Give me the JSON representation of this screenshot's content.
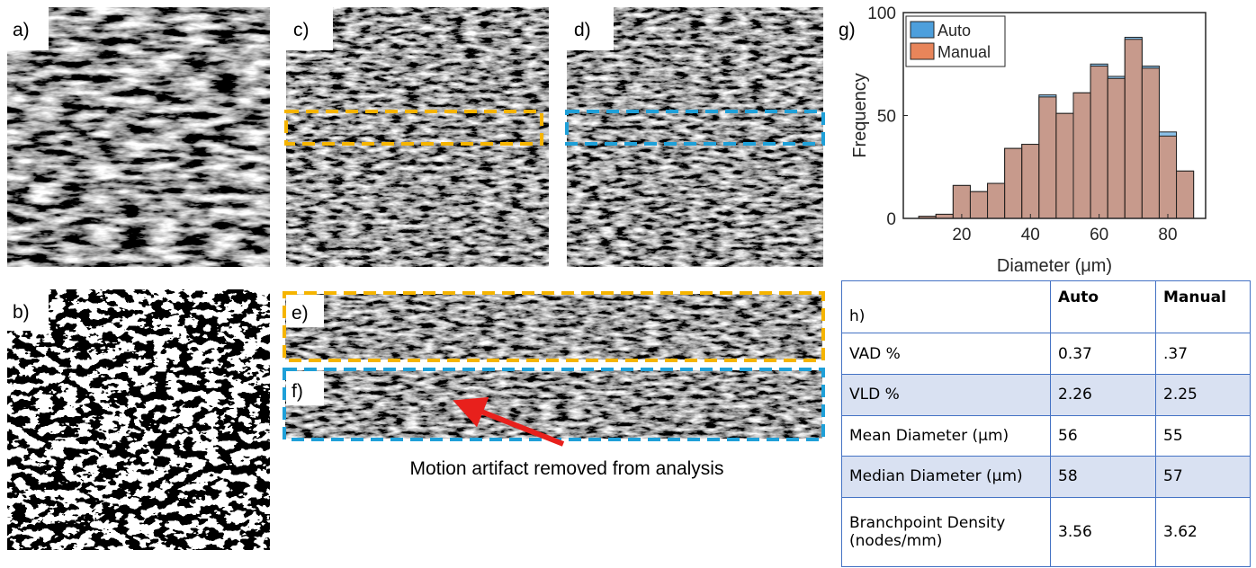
{
  "panels": [
    "a)",
    "b)",
    "c)",
    "d)",
    "e)",
    "f)"
  ],
  "annotation": "Motion artifact removed from analysis",
  "chart_data": {
    "type": "histogram",
    "label": "g)",
    "x_label": "Diameter (μm)",
    "y_label": "Frequency",
    "bins": [
      7.5,
      12.5,
      17.5,
      22.5,
      27.5,
      32.5,
      37.5,
      42.5,
      47.5,
      52.5,
      57.5,
      62.5,
      67.5,
      72.5,
      77.5,
      82.5,
      87.5
    ],
    "series": [
      {
        "name": "Auto",
        "color": "#4d9fdc",
        "values": [
          1,
          2,
          16,
          13,
          17,
          34,
          36,
          60,
          51,
          61,
          75,
          69,
          88,
          74,
          42,
          23
        ]
      },
      {
        "name": "Manual",
        "color": "#e8855a",
        "values": [
          1,
          2,
          16,
          13,
          17,
          34,
          36,
          59,
          51,
          61,
          74,
          68,
          87,
          73,
          40,
          23
        ]
      }
    ],
    "xlim": [
      3,
      91
    ],
    "ylim": [
      0,
      100
    ],
    "xticks": [
      20,
      40,
      60,
      80
    ],
    "yticks": [
      0,
      50,
      100
    ],
    "legend": "upper-left"
  },
  "table": {
    "header": [
      "h)",
      "Auto",
      "Manual"
    ],
    "rows": [
      [
        "VAD %",
        "0.37",
        ".37"
      ],
      [
        "VLD %",
        "2.26",
        "2.25"
      ],
      [
        "Mean Diameter (µm)",
        "56",
        "55"
      ],
      [
        "Median Diameter (µm)",
        "58",
        "57"
      ],
      [
        "Branchpoint Density (nodes/mm)",
        "3.56",
        "3.62"
      ]
    ]
  }
}
